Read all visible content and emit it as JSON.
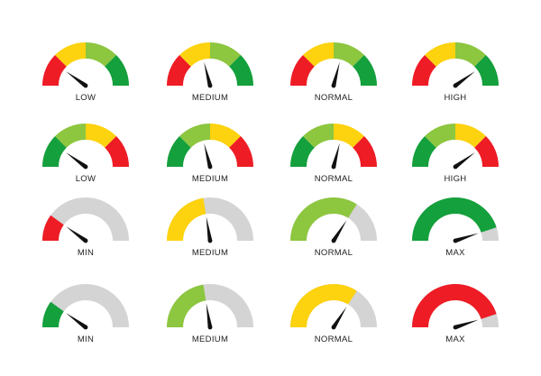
{
  "colors": {
    "red": "#ee1c25",
    "yellow": "#fdd20e",
    "light_green": "#8dc63f",
    "green": "#14a03c",
    "gray": "#d4d4d4",
    "needle": "#111111"
  },
  "rows": [
    {
      "style": "segmented",
      "segments": [
        "red",
        "yellow",
        "light_green",
        "green"
      ],
      "gauges": [
        {
          "label": "LOW",
          "level": 0.2
        },
        {
          "label": "MEDIUM",
          "level": 0.42
        },
        {
          "label": "NORMAL",
          "level": 0.58
        },
        {
          "label": "HIGH",
          "level": 0.8
        }
      ]
    },
    {
      "style": "segmented",
      "segments": [
        "green",
        "light_green",
        "yellow",
        "red"
      ],
      "gauges": [
        {
          "label": "LOW",
          "level": 0.2
        },
        {
          "label": "MEDIUM",
          "level": 0.42
        },
        {
          "label": "NORMAL",
          "level": 0.58
        },
        {
          "label": "HIGH",
          "level": 0.8
        }
      ]
    },
    {
      "style": "fill",
      "gauges": [
        {
          "label": "MIN",
          "level": 0.2,
          "fill_color": "red"
        },
        {
          "label": "MEDIUM",
          "level": 0.45,
          "fill_color": "yellow"
        },
        {
          "label": "NORMAL",
          "level": 0.68,
          "fill_color": "light_green"
        },
        {
          "label": "MAX",
          "level": 0.9,
          "fill_color": "green"
        }
      ]
    },
    {
      "style": "fill",
      "gauges": [
        {
          "label": "MIN",
          "level": 0.2,
          "fill_color": "green"
        },
        {
          "label": "MEDIUM",
          "level": 0.45,
          "fill_color": "light_green"
        },
        {
          "label": "NORMAL",
          "level": 0.68,
          "fill_color": "yellow"
        },
        {
          "label": "MAX",
          "level": 0.9,
          "fill_color": "red"
        }
      ]
    }
  ]
}
